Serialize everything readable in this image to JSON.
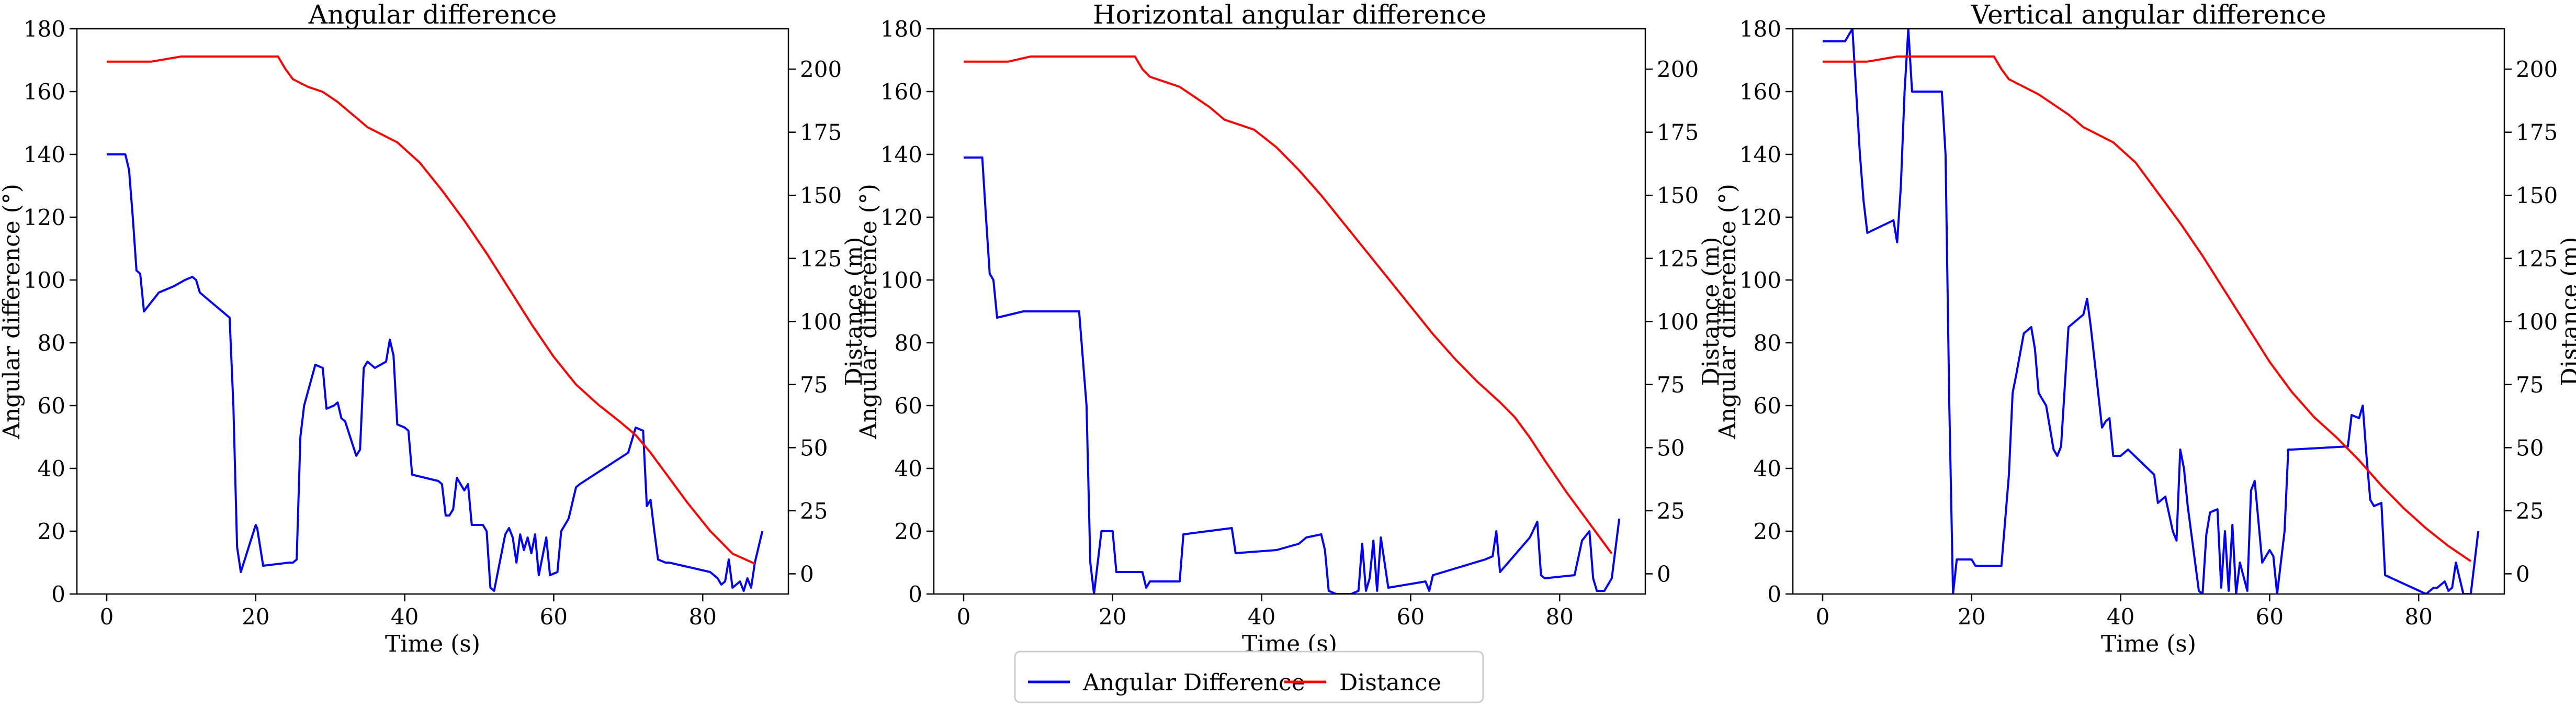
{
  "colors": {
    "angular": "#0000ff",
    "distance": "#ff0000",
    "axis": "#000000"
  },
  "legend": {
    "placement": "bottom-center",
    "entries": [
      {
        "name": "Angular Difference",
        "color": "#0000ff"
      },
      {
        "name": "Distance",
        "color": "#ff0000"
      }
    ]
  },
  "chart_data": [
    {
      "type": "line",
      "title": "Angular difference",
      "xlabel": "Time (s)",
      "ylabel": "Angular difference (°)",
      "y2label": "Distance (m)",
      "xlim": [
        -4,
        91.5
      ],
      "ylim": [
        0,
        180
      ],
      "y2lim": [
        -8,
        216
      ],
      "xticks": [
        0,
        20,
        40,
        60,
        80
      ],
      "yticks": [
        0,
        20,
        40,
        60,
        80,
        100,
        120,
        140,
        160,
        180
      ],
      "y2ticks": [
        0,
        25,
        50,
        75,
        100,
        125,
        150,
        175,
        200
      ],
      "grid": false,
      "series": [
        {
          "name": "Angular Difference",
          "axis": "left",
          "color": "#0000ff",
          "x": [
            0,
            2.5,
            3,
            3.5,
            4,
            4.5,
            5,
            7,
            9,
            10.5,
            11.5,
            12,
            12.5,
            16,
            16.5,
            17,
            17.5,
            18,
            20,
            20.2,
            21,
            24.5,
            25,
            25.5,
            26,
            26.5,
            28,
            29,
            29.5,
            30.5,
            31,
            31.5,
            32,
            33.5,
            34,
            34.5,
            35,
            36,
            37.5,
            38,
            38.5,
            39,
            40,
            40.5,
            41,
            44.5,
            45,
            45.5,
            46,
            46.5,
            47,
            48,
            48.5,
            49,
            50.5,
            51,
            51.5,
            52,
            53.5,
            54,
            54.5,
            55,
            55.5,
            56,
            56.5,
            57,
            57.5,
            58,
            59,
            59.5,
            60.5,
            61,
            62,
            63,
            63.5,
            70,
            71,
            72,
            72.5,
            73,
            73.5,
            74,
            75,
            75.5,
            81,
            82,
            82.5,
            83,
            83.5,
            84,
            84.5,
            85,
            85.5,
            86,
            86.5,
            87,
            88
          ],
          "y": [
            140,
            140,
            135,
            120,
            103,
            102,
            90,
            96,
            98,
            100,
            101,
            100,
            96,
            89,
            88,
            60,
            15,
            7,
            22,
            21,
            9,
            10,
            10,
            11,
            50,
            60,
            73,
            72,
            59,
            60,
            61,
            56,
            55,
            44,
            46,
            72,
            74,
            72,
            74,
            81,
            76,
            54,
            53,
            52,
            38,
            36,
            35,
            25,
            25,
            27,
            37,
            33,
            35,
            22,
            22,
            20,
            2,
            1,
            19,
            21,
            18,
            10,
            19,
            14,
            18,
            13,
            19,
            6,
            18,
            6,
            7,
            20,
            24,
            34,
            35,
            45,
            53,
            52,
            28,
            30,
            20,
            11,
            10,
            10,
            7,
            5,
            3,
            4,
            11,
            2,
            3,
            4,
            1,
            5,
            2,
            10,
            20
          ]
        },
        {
          "name": "Distance",
          "axis": "right",
          "color": "#ff0000",
          "x": [
            0,
            6,
            10,
            23,
            24,
            25,
            27,
            29,
            31,
            33,
            35,
            37,
            39,
            42,
            45,
            48,
            51,
            54,
            57,
            60,
            63,
            66,
            69,
            71,
            73,
            75,
            78,
            81,
            84,
            87
          ],
          "y": [
            203,
            203,
            205,
            205,
            200,
            196,
            193,
            191,
            187,
            182,
            177,
            174,
            171,
            163,
            152,
            140,
            127,
            113,
            99,
            86,
            75,
            67,
            60,
            55,
            48,
            40,
            28,
            17,
            8,
            4
          ]
        }
      ]
    },
    {
      "type": "line",
      "title": "Horizontal angular difference",
      "xlabel": "Time (s)",
      "ylabel": "Angular difference (°)",
      "y2label": "Distance (m)",
      "xlim": [
        -4,
        91.5
      ],
      "ylim": [
        0,
        180
      ],
      "y2lim": [
        -8,
        216
      ],
      "xticks": [
        0,
        20,
        40,
        60,
        80
      ],
      "yticks": [
        0,
        20,
        40,
        60,
        80,
        100,
        120,
        140,
        160,
        180
      ],
      "y2ticks": [
        0,
        25,
        50,
        75,
        100,
        125,
        150,
        175,
        200
      ],
      "grid": false,
      "series": [
        {
          "name": "Angular Difference",
          "axis": "left",
          "color": "#0000ff",
          "x": [
            0,
            2.5,
            3,
            3.5,
            4,
            4.5,
            8,
            15.5,
            16,
            16.5,
            17,
            17.5,
            18.5,
            19,
            20,
            20.5,
            24,
            24.5,
            25,
            29,
            29.5,
            36,
            36.5,
            42,
            45,
            46,
            48,
            48.5,
            49,
            50,
            52,
            53,
            53.5,
            54,
            54.5,
            55,
            55.5,
            56,
            57,
            62,
            62.5,
            63,
            70,
            71,
            71.5,
            72,
            76,
            77,
            77.5,
            78,
            82,
            83,
            84,
            84.5,
            85,
            86,
            87,
            88
          ],
          "y": [
            139,
            139,
            120,
            102,
            100,
            88,
            90,
            90,
            75,
            60,
            10,
            0,
            20,
            20,
            20,
            7,
            7,
            2,
            4,
            4,
            19,
            21,
            13,
            14,
            16,
            18,
            19,
            14,
            1,
            0,
            0,
            1,
            16,
            1,
            5,
            17,
            1,
            18,
            2,
            4,
            1,
            6,
            11,
            12,
            20,
            7,
            18,
            23,
            6,
            5,
            6,
            17,
            20,
            5,
            1,
            1,
            5,
            24
          ]
        },
        {
          "name": "Distance",
          "axis": "right",
          "color": "#ff0000",
          "x": [
            0,
            6,
            9,
            23,
            24,
            25,
            27,
            29,
            31,
            33,
            35,
            37,
            39,
            42,
            45,
            48,
            51,
            54,
            57,
            60,
            63,
            66,
            69,
            72,
            74,
            76,
            78,
            81,
            84,
            87
          ],
          "y": [
            203,
            203,
            205,
            205,
            200,
            197,
            195,
            193,
            189,
            185,
            180,
            178,
            176,
            169,
            160,
            150,
            139,
            128,
            117,
            106,
            95,
            85,
            76,
            68,
            62,
            54,
            45,
            32,
            20,
            8
          ]
        }
      ]
    },
    {
      "type": "line",
      "title": "Vertical angular difference",
      "xlabel": "Time (s)",
      "ylabel": "Angular difference (°)",
      "y2label": "Distance (m)",
      "xlim": [
        -4,
        91.5
      ],
      "ylim": [
        0,
        180
      ],
      "y2lim": [
        -8,
        216
      ],
      "xticks": [
        0,
        20,
        40,
        60,
        80
      ],
      "yticks": [
        0,
        20,
        40,
        60,
        80,
        100,
        120,
        140,
        160,
        180
      ],
      "y2ticks": [
        0,
        25,
        50,
        75,
        100,
        125,
        150,
        175,
        200
      ],
      "grid": false,
      "series": [
        {
          "name": "Angular Difference",
          "axis": "left",
          "color": "#0000ff",
          "x": [
            0,
            3,
            3.5,
            4,
            5,
            5.5,
            6,
            9.5,
            10,
            10.5,
            11,
            11.5,
            12,
            12.5,
            13,
            16,
            16.5,
            17,
            17.5,
            18,
            20,
            20.5,
            24,
            25,
            25.5,
            26,
            27,
            28,
            28.5,
            29,
            30,
            31,
            31.5,
            32,
            33,
            34,
            35,
            35.5,
            36,
            37.5,
            38,
            38.5,
            39,
            40,
            40.5,
            41,
            44.5,
            45,
            46,
            47,
            47.5,
            48,
            48.5,
            49,
            50,
            50.5,
            51,
            51.5,
            52,
            53,
            53.5,
            54,
            54.5,
            55,
            55.5,
            56,
            57,
            57.5,
            58,
            59,
            60,
            60.5,
            61,
            62,
            62.5,
            63,
            70.5,
            71,
            72,
            72.5,
            73,
            73.5,
            74,
            75,
            75.5,
            81,
            82,
            82.5,
            83,
            83.5,
            84,
            84.5,
            85,
            86,
            87,
            88
          ],
          "y": [
            176,
            176,
            178,
            180,
            140,
            125,
            115,
            119,
            112,
            130,
            160,
            180,
            160,
            160,
            160,
            160,
            140,
            60,
            0,
            11,
            11,
            9,
            9,
            38,
            64,
            70,
            83,
            85,
            78,
            64,
            60,
            46,
            44,
            47,
            85,
            87,
            89,
            94,
            85,
            53,
            55,
            56,
            44,
            44,
            45,
            46,
            38,
            29,
            31,
            20,
            17,
            46,
            40,
            28,
            10,
            1,
            0,
            19,
            26,
            27,
            2,
            20,
            1,
            22,
            0,
            10,
            1,
            33,
            36,
            10,
            14,
            12,
            0,
            20,
            46,
            46,
            47,
            57,
            56,
            60,
            44,
            30,
            28,
            29,
            6,
            0,
            2,
            2,
            3,
            4,
            1,
            2,
            10,
            0,
            0,
            20
          ]
        },
        {
          "name": "Distance",
          "axis": "right",
          "color": "#ff0000",
          "x": [
            0,
            3,
            6,
            10,
            23,
            24,
            25,
            27,
            29,
            31,
            33,
            35,
            37,
            39,
            42,
            45,
            48,
            51,
            54,
            57,
            60,
            63,
            66,
            69,
            72,
            75,
            78,
            81,
            84,
            87
          ],
          "y": [
            203,
            203,
            203,
            205,
            205,
            200,
            196,
            193,
            190,
            186,
            182,
            177,
            174,
            171,
            163,
            151,
            139,
            126,
            112,
            98,
            84,
            72,
            62,
            54,
            45,
            35,
            26,
            18,
            11,
            5
          ]
        }
      ]
    }
  ]
}
